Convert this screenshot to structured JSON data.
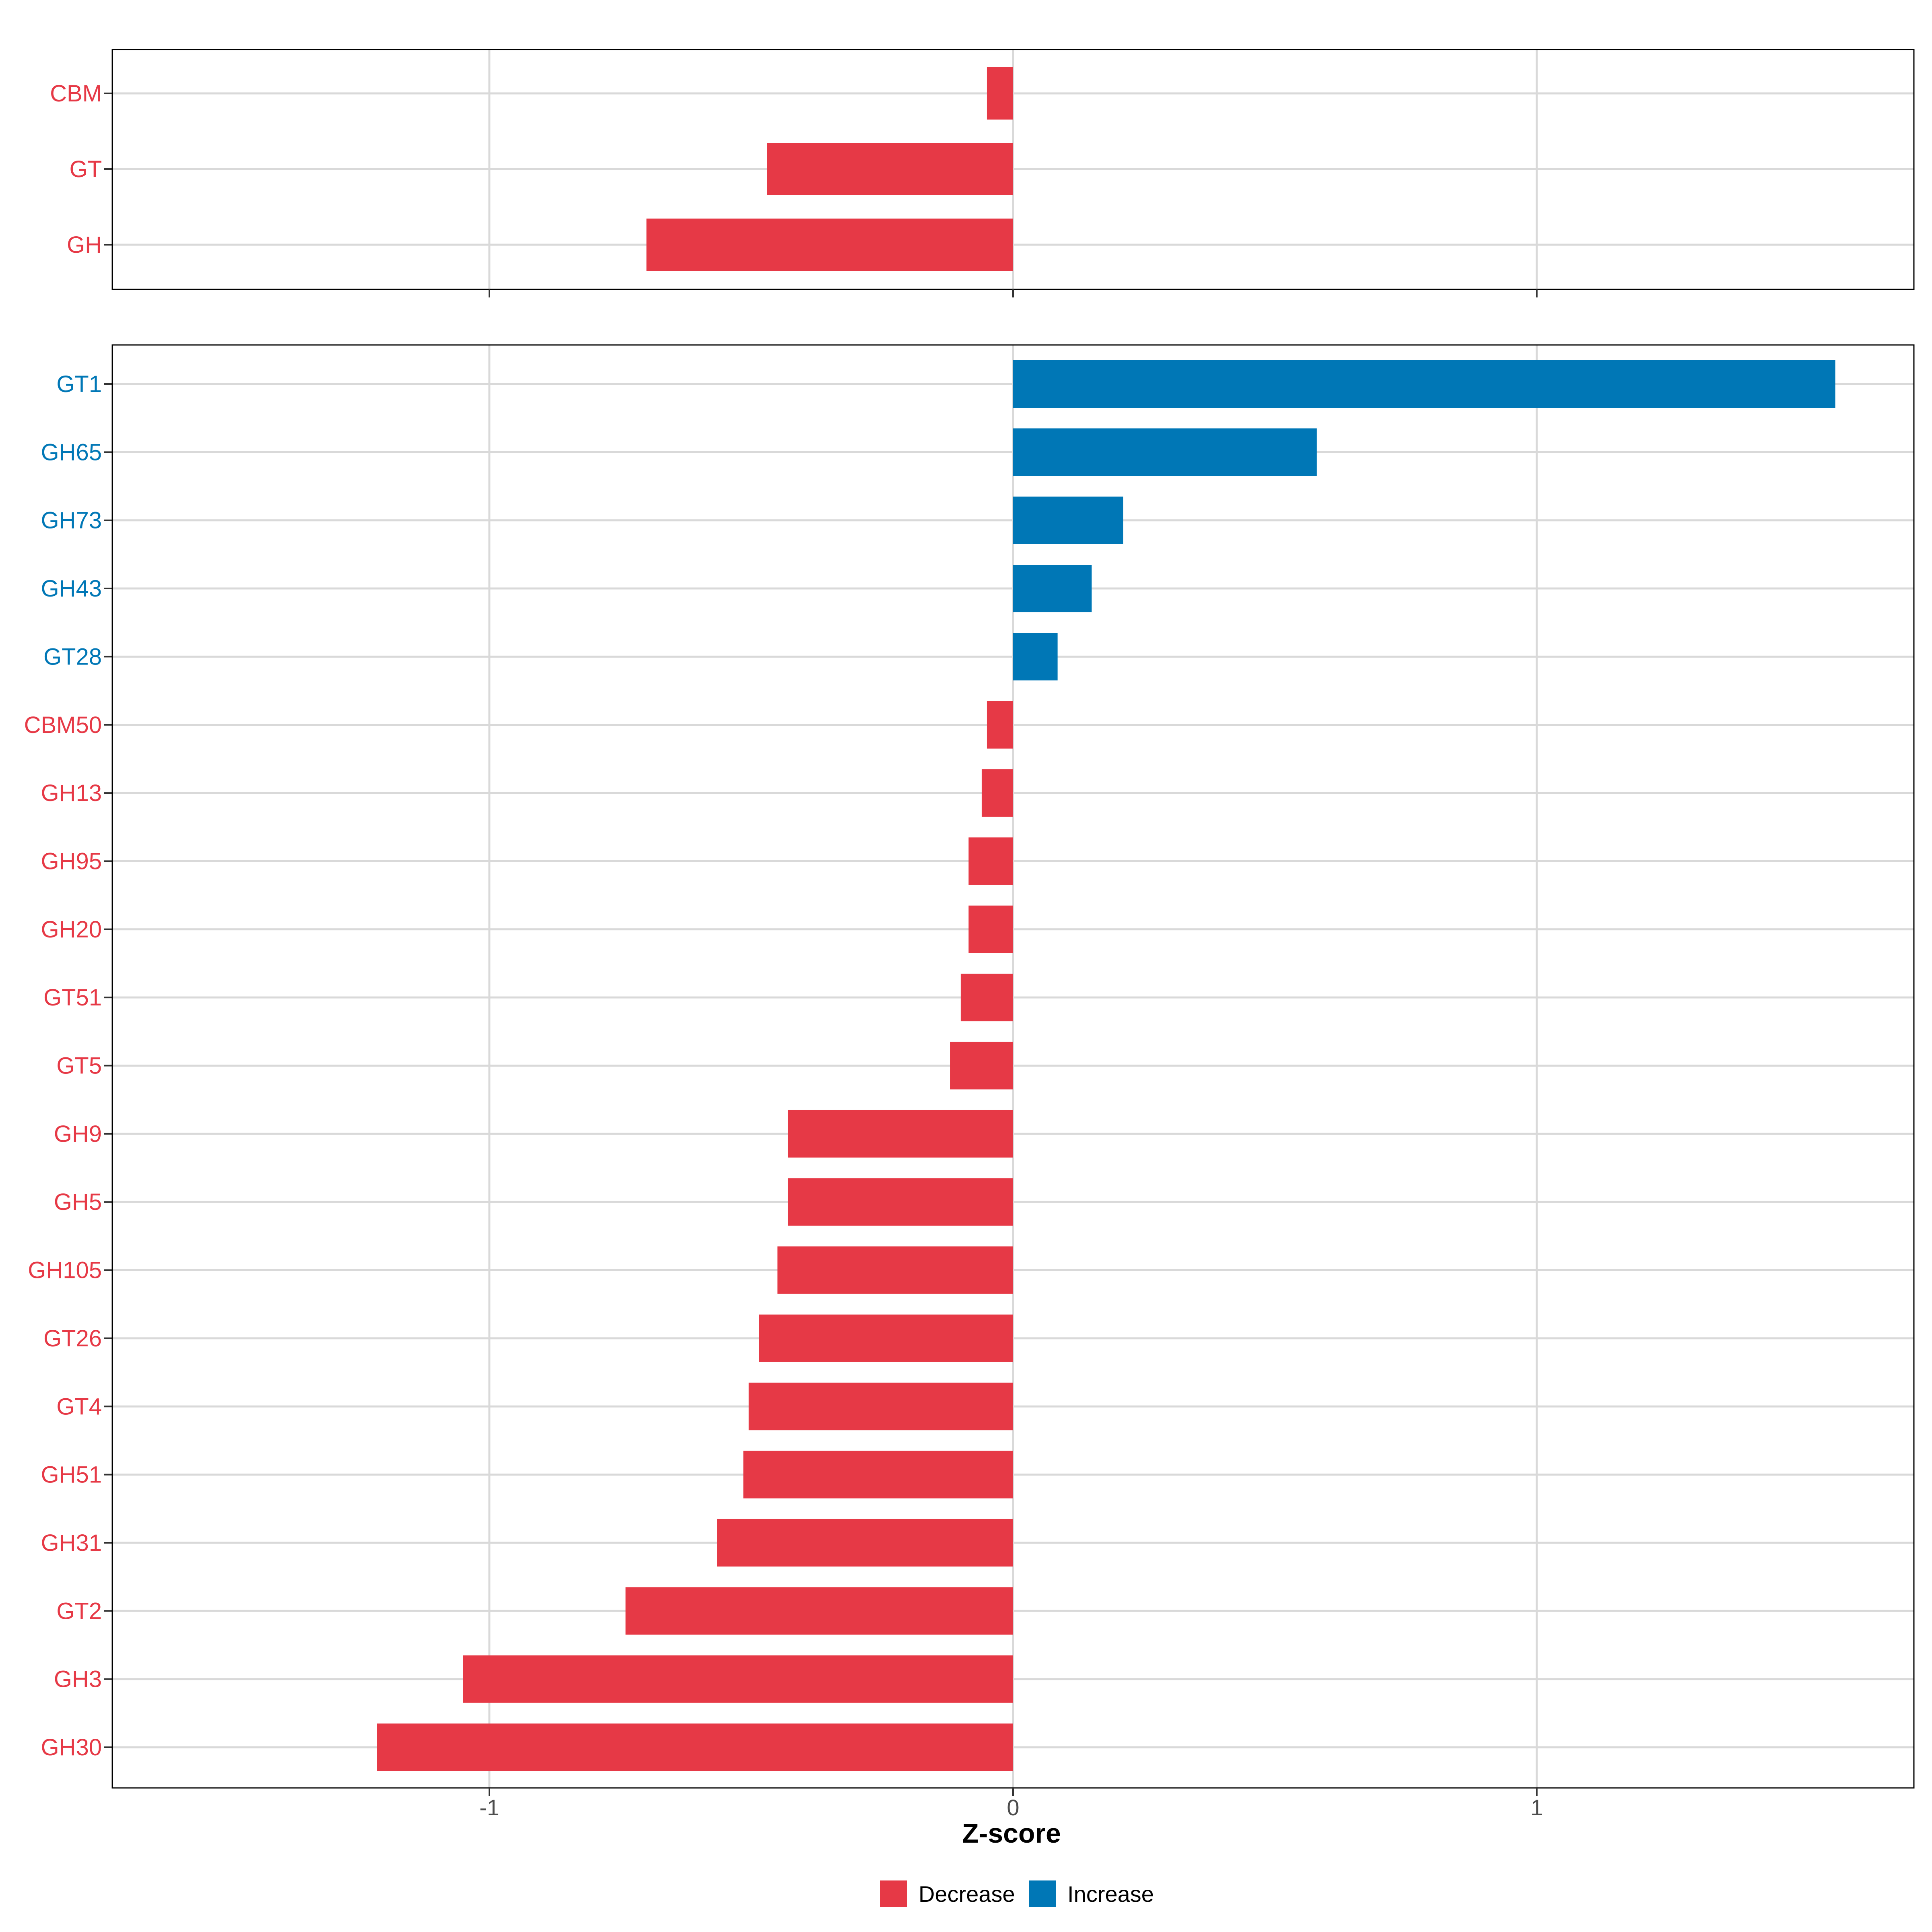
{
  "colors": {
    "decrease": "#E63946",
    "increase": "#0077B6"
  },
  "chart_data": [
    {
      "type": "bar",
      "orientation": "horizontal",
      "panel": "top",
      "categories": [
        "CBM",
        "GT",
        "GH"
      ],
      "values": [
        -0.05,
        -0.47,
        -0.7
      ],
      "xlim": [
        -1.72,
        1.72
      ]
    },
    {
      "type": "bar",
      "orientation": "horizontal",
      "panel": "bottom",
      "categories": [
        "GT1",
        "GH65",
        "GH73",
        "GH43",
        "GT28",
        "CBM50",
        "GH13",
        "GH95",
        "GH20",
        "GT51",
        "GT5",
        "GH9",
        "GH5",
        "GH105",
        "GT26",
        "GT4",
        "GH51",
        "GH31",
        "GT2",
        "GH3",
        "GH30"
      ],
      "values": [
        1.57,
        0.58,
        0.21,
        0.15,
        0.085,
        -0.05,
        -0.06,
        -0.085,
        -0.085,
        -0.1,
        -0.12,
        -0.43,
        -0.43,
        -0.45,
        -0.485,
        -0.505,
        -0.515,
        -0.565,
        -0.74,
        -1.05,
        -1.215
      ],
      "xlim": [
        -1.72,
        1.72
      ],
      "xticks": [
        -1,
        0,
        1
      ],
      "xtick_labels": [
        "-1",
        "0",
        "1"
      ],
      "xlabel": "Z-score"
    }
  ],
  "legend": {
    "items": [
      {
        "label": "Decrease",
        "color": "#E63946"
      },
      {
        "label": "Increase",
        "color": "#0077B6"
      }
    ]
  }
}
